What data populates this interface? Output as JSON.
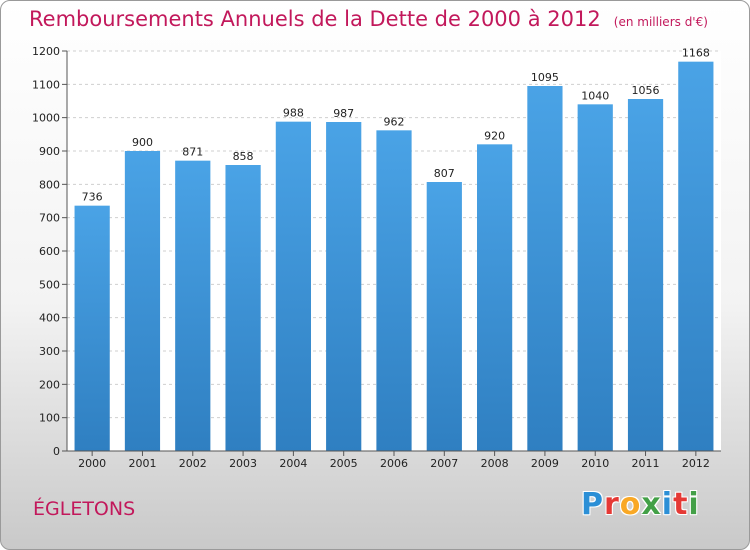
{
  "header": {
    "title": "Remboursements Annuels de la Dette de 2000 à 2012",
    "unit": "(en milliers d'€)"
  },
  "footer": {
    "place": "ÉGLETONS",
    "logo_letters": [
      "P",
      "r",
      "o",
      "x",
      "i",
      "t",
      "i"
    ],
    "logo_colors": [
      "#2b8fd6",
      "#e53935",
      "#f9a825",
      "#43a047",
      "#2b8fd6",
      "#e53935",
      "#43a047"
    ]
  },
  "colors": {
    "bar": "#4aa3e6",
    "bar_dark": "#2f7fc1",
    "grid": "#cfcfcf",
    "accent": "#c2185b"
  },
  "chart_data": {
    "type": "bar",
    "categories": [
      "2000",
      "2001",
      "2002",
      "2003",
      "2004",
      "2005",
      "2006",
      "2007",
      "2008",
      "2009",
      "2010",
      "2011",
      "2012"
    ],
    "values": [
      736,
      900,
      871,
      858,
      988,
      987,
      962,
      807,
      920,
      1095,
      1040,
      1056,
      1168
    ],
    "value_labels": [
      "736",
      "900",
      "871",
      "858",
      "988",
      "987",
      "962",
      "807",
      "920",
      "1095",
      "1040",
      "1056",
      "1168"
    ],
    "title": "Remboursements Annuels de la Dette de 2000 à 2012",
    "ylim": [
      0,
      1200
    ],
    "yticks": [
      "0",
      "100",
      "200",
      "300",
      "400",
      "500",
      "600",
      "700",
      "800",
      "900",
      "1000",
      "1100",
      "1200"
    ],
    "grid": true,
    "legend": "none"
  }
}
